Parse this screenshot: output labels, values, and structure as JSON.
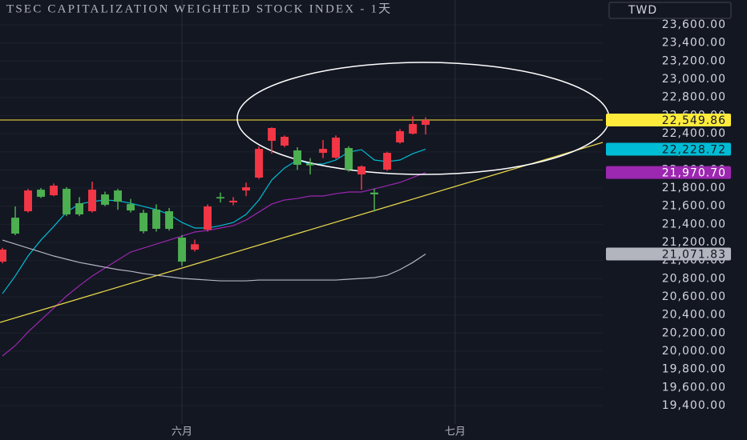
{
  "chart_data": {
    "type": "candlestick",
    "title": "TSEC CAPITALIZATION WEIGHTED STOCK INDEX - 1天",
    "currency": "TWD",
    "up_color": "#f23645",
    "down_color": "#4caf50",
    "x": [
      0,
      1,
      2,
      3,
      4,
      5,
      6,
      7,
      8,
      9,
      10,
      11,
      12,
      13,
      14,
      15,
      16,
      17,
      18,
      19,
      20,
      21,
      22,
      23,
      24,
      25,
      26,
      27,
      28,
      29,
      30,
      31,
      32,
      33
    ],
    "open": [
      20988,
      21473,
      21544,
      21782,
      21720,
      21791,
      21632,
      21544,
      21729,
      21773,
      21623,
      21526,
      21562,
      21544,
      21253,
      21120,
      21341,
      21700,
      21641,
      21773,
      21915,
      22321,
      22268,
      22215,
      22070,
      22188,
      22135,
      22241,
      21950,
      21750,
      22003,
      22303,
      22400,
      22497
    ],
    "high": [
      21140,
      21597,
      21790,
      21800,
      21850,
      21810,
      21700,
      21870,
      21760,
      21790,
      21680,
      21560,
      21620,
      21580,
      21280,
      21230,
      21620,
      21750,
      21700,
      21860,
      22260,
      22470,
      22380,
      22250,
      22130,
      22330,
      22380,
      22260,
      22050,
      21790,
      22200,
      22450,
      22590,
      22580
    ],
    "low": [
      20970,
      21280,
      21530,
      21690,
      21710,
      21490,
      21490,
      21530,
      21600,
      21560,
      21530,
      21300,
      21320,
      21330,
      20940,
      21100,
      21320,
      21640,
      21610,
      21710,
      21900,
      22180,
      22250,
      22000,
      21950,
      22130,
      22120,
      21980,
      21780,
      21540,
      21990,
      22290,
      22390,
      22390
    ],
    "close": [
      21121,
      21297,
      21773,
      21703,
      21826,
      21509,
      21509,
      21782,
      21615,
      21650,
      21553,
      21323,
      21350,
      21350,
      20988,
      21180,
      21597,
      21685,
      21660,
      21808,
      22232,
      22462,
      22365,
      22056,
      22050,
      22232,
      22356,
      22003,
      22038,
      21730,
      22188,
      22427,
      22506,
      22549.86
    ],
    "last_close_label": "22,549.86",
    "last_close_color": "#ffeb3b",
    "series": [
      {
        "color": "#00bcd4",
        "last_label": "22,228.72",
        "values": [
          20635,
          20830,
          21050,
          21226,
          21376,
          21535,
          21623,
          21650,
          21668,
          21659,
          21632,
          21597,
          21562,
          21509,
          21420,
          21359,
          21359,
          21385,
          21420,
          21509,
          21668,
          21888,
          22021,
          22109,
          22065,
          22065,
          22109,
          22197,
          22223,
          22109,
          22091,
          22109,
          22179,
          22228.72
        ]
      },
      {
        "color": "#9c27b0",
        "last_label": "21,970.70",
        "values": [
          19947,
          20062,
          20212,
          20344,
          20476,
          20609,
          20723,
          20829,
          20918,
          21006,
          21094,
          21138,
          21182,
          21226,
          21270,
          21315,
          21332,
          21359,
          21385,
          21447,
          21535,
          21623,
          21668,
          21685,
          21712,
          21712,
          21738,
          21756,
          21756,
          21791,
          21826,
          21862,
          21915,
          21970.7
        ]
      },
      {
        "color": "#b2b5be",
        "last_label": "21,071.83",
        "values": [
          21226,
          21182,
          21138,
          21094,
          21050,
          21015,
          20979,
          20953,
          20926,
          20900,
          20882,
          20856,
          20838,
          20821,
          20803,
          20794,
          20785,
          20776,
          20776,
          20776,
          20785,
          20785,
          20785,
          20785,
          20785,
          20785,
          20785,
          20794,
          20803,
          20812,
          20838,
          20900,
          20979,
          21071.83
        ]
      }
    ],
    "xlim": [
      -0.19,
      46.81
    ],
    "xticks": [
      {
        "value": 14,
        "label": "六月"
      },
      {
        "value": 35.3,
        "label": "七月"
      }
    ],
    "ylim": [
      19197,
      23874
    ],
    "yticks": [
      {
        "value": 19400,
        "label": "19,400.00"
      },
      {
        "value": 19600,
        "label": "19,600.00"
      },
      {
        "value": 19800,
        "label": "19,800.00"
      },
      {
        "value": 20000,
        "label": "20,000.00"
      },
      {
        "value": 20200,
        "label": "20,200.00"
      },
      {
        "value": 20400,
        "label": "20,400.00"
      },
      {
        "value": 20600,
        "label": "20,600.00"
      },
      {
        "value": 20800,
        "label": "20,800.00"
      },
      {
        "value": 21000,
        "label": "21,000.00"
      },
      {
        "value": 21200,
        "label": "21,200.00"
      },
      {
        "value": 21400,
        "label": "21,400.00"
      },
      {
        "value": 21600,
        "label": "21,600.00"
      },
      {
        "value": 21800,
        "label": "21,800.00"
      },
      {
        "value": 22000,
        "label": "22,000.00"
      },
      {
        "value": 22200,
        "label": "22,200.00"
      },
      {
        "value": 22400,
        "label": "22,400.00"
      },
      {
        "value": 22600,
        "label": "22,600.00"
      },
      {
        "value": 22800,
        "label": "22,800.00"
      },
      {
        "value": 23000,
        "label": "23,000.00"
      },
      {
        "value": 23200,
        "label": "23,200.00"
      },
      {
        "value": 23400,
        "label": "23,400.00"
      },
      {
        "value": 23600,
        "label": "23,600.00"
      }
    ],
    "grid": true
  }
}
